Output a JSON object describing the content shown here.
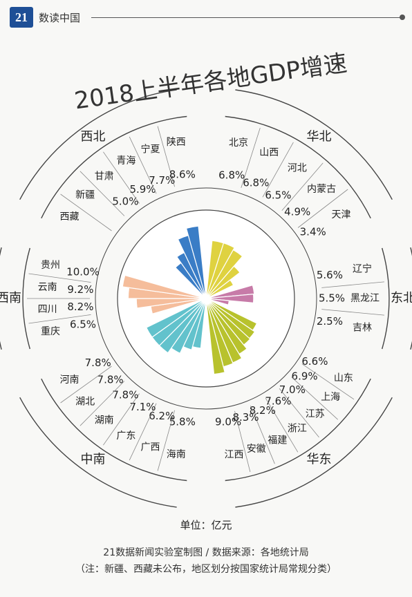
{
  "header": {
    "logo_text": "21",
    "brand": "数读中国"
  },
  "chart_data": {
    "type": "radial-bar",
    "title": "2018上半年各地GDP增速",
    "unit_label": "单位：亿元",
    "colors": {
      "华北": "#dfd240",
      "东北": "#c77ba8",
      "华东": "#b8c22d",
      "中南": "#62c2cc",
      "西南": "#f5bd9b",
      "西北": "#3a7dc6"
    },
    "regions": [
      {
        "name": "华北",
        "provinces": [
          {
            "name": "北京",
            "value": 6.8,
            "label": "6.8%"
          },
          {
            "name": "山西",
            "value": 6.8,
            "label": "6.8%"
          },
          {
            "name": "河北",
            "value": 6.5,
            "label": "6.5%"
          },
          {
            "name": "内蒙古",
            "value": 4.9,
            "label": "4.9%"
          },
          {
            "name": "天津",
            "value": 3.4,
            "label": "3.4%"
          }
        ]
      },
      {
        "name": "东北",
        "provinces": [
          {
            "name": "辽宁",
            "value": 5.6,
            "label": "5.6%"
          },
          {
            "name": "黑龙江",
            "value": 5.5,
            "label": "5.5%"
          },
          {
            "name": "吉林",
            "value": 2.5,
            "label": "2.5%"
          }
        ]
      },
      {
        "name": "华东",
        "provinces": [
          {
            "name": "山东",
            "value": 6.6,
            "label": "6.6%"
          },
          {
            "name": "上海",
            "value": 6.9,
            "label": "6.9%"
          },
          {
            "name": "江苏",
            "value": 7.0,
            "label": "7.0%"
          },
          {
            "name": "浙江",
            "value": 7.6,
            "label": "7.6%"
          },
          {
            "name": "福建",
            "value": 8.2,
            "label": "8.2%"
          },
          {
            "name": "安徽",
            "value": 8.3,
            "label": "8.3%"
          },
          {
            "name": "江西",
            "value": 9.0,
            "label": "9.0%"
          }
        ]
      },
      {
        "name": "中南",
        "provinces": [
          {
            "name": "海南",
            "value": 5.8,
            "label": "5.8%"
          },
          {
            "name": "广西",
            "value": 6.2,
            "label": "6.2%"
          },
          {
            "name": "广东",
            "value": 7.1,
            "label": "7.1%"
          },
          {
            "name": "湖南",
            "value": 7.8,
            "label": "7.8%"
          },
          {
            "name": "湖北",
            "value": 7.8,
            "label": "7.8%"
          },
          {
            "name": "河南",
            "value": 7.8,
            "label": "7.8%"
          }
        ]
      },
      {
        "name": "西南",
        "provinces": [
          {
            "name": "重庆",
            "value": 6.5,
            "label": "6.5%"
          },
          {
            "name": "四川",
            "value": 8.2,
            "label": "8.2%"
          },
          {
            "name": "云南",
            "value": 9.2,
            "label": "9.2%"
          },
          {
            "name": "贵州",
            "value": 10.0,
            "label": "10.0%"
          }
        ]
      },
      {
        "name": "西北",
        "provinces": [
          {
            "name": "西藏",
            "value": null,
            "label": ""
          },
          {
            "name": "新疆",
            "value": null,
            "label": ""
          },
          {
            "name": "甘肃",
            "value": 5.0,
            "label": "5.0%"
          },
          {
            "name": "青海",
            "value": 5.9,
            "label": "5.9%"
          },
          {
            "name": "宁夏",
            "value": 7.7,
            "label": "7.7%"
          },
          {
            "name": "陕西",
            "value": 8.6,
            "label": "8.6%"
          }
        ]
      }
    ]
  },
  "footer": {
    "source": "21数据新闻实验室制图 / 数据来源：各地统计局",
    "note": "（注：新疆、西藏未公布，地区划分按国家统计局常规分类）"
  }
}
